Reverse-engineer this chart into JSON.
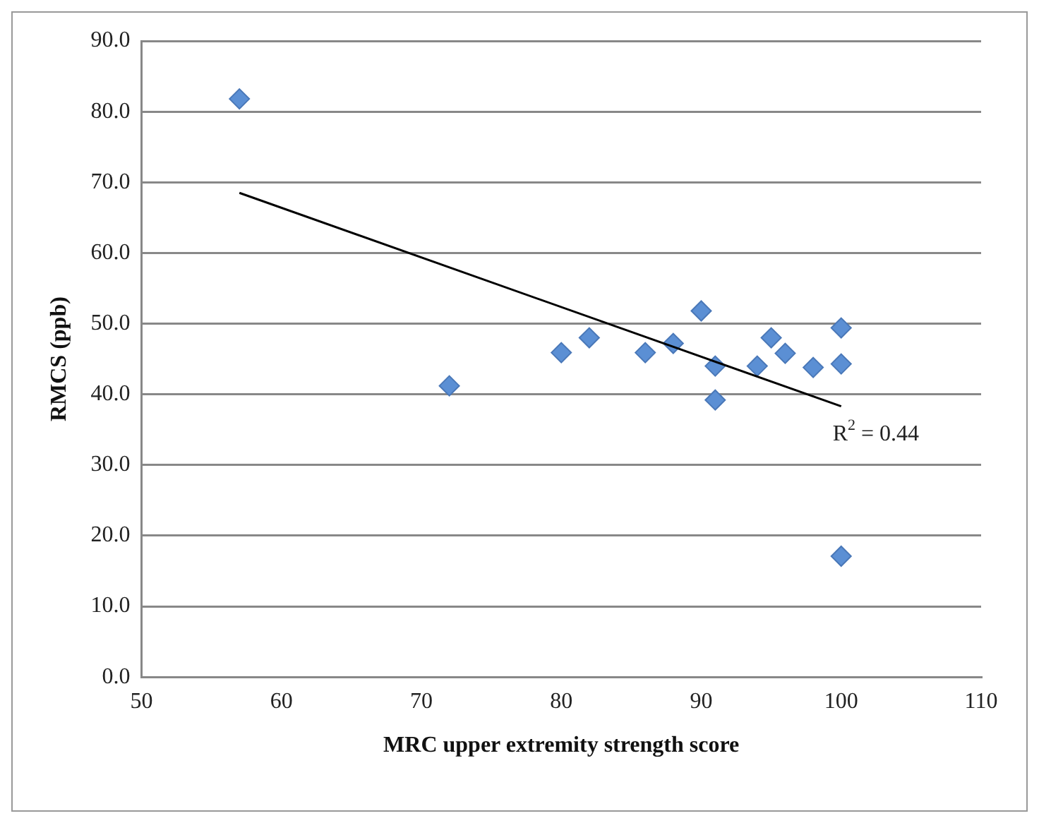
{
  "chart_data": {
    "type": "scatter",
    "xlabel": "MRC upper extremity strength score",
    "ylabel": "RMCS (ppb)",
    "xlim": [
      50,
      110
    ],
    "xticks": [
      50,
      60,
      70,
      80,
      90,
      100,
      110
    ],
    "ylim": [
      0,
      90
    ],
    "yticks": [
      {
        "value": 0,
        "label": "0.0"
      },
      {
        "value": 10,
        "label": "10.0"
      },
      {
        "value": 20,
        "label": "20.0"
      },
      {
        "value": 30,
        "label": "30.0"
      },
      {
        "value": 40,
        "label": "40.0"
      },
      {
        "value": 50,
        "label": "50.0"
      },
      {
        "value": 60,
        "label": "60.0"
      },
      {
        "value": 70,
        "label": "70.0"
      },
      {
        "value": 80,
        "label": "80.0"
      },
      {
        "value": 90,
        "label": "90.0"
      }
    ],
    "grid": "y",
    "legend": false,
    "marker": "diamond",
    "series": [
      {
        "color": "#5b8fd4",
        "x": [
          57,
          72,
          80,
          82,
          86,
          88,
          90,
          91,
          91,
          94,
          95,
          96,
          98,
          100,
          100,
          100
        ],
        "values": [
          81.8,
          41.2,
          45.9,
          48.0,
          45.9,
          47.2,
          51.8,
          44.0,
          39.2,
          44.0,
          48.0,
          45.8,
          43.8,
          49.4,
          44.3,
          17.1
        ]
      },
      {
        "type": "line",
        "color": "#000000",
        "marker": "none",
        "line_style": "solid",
        "x": [
          57,
          100
        ],
        "values": [
          68.5,
          38.3
        ]
      }
    ],
    "annotations": [
      "R$^{2}$ = 0.44"
    ]
  }
}
